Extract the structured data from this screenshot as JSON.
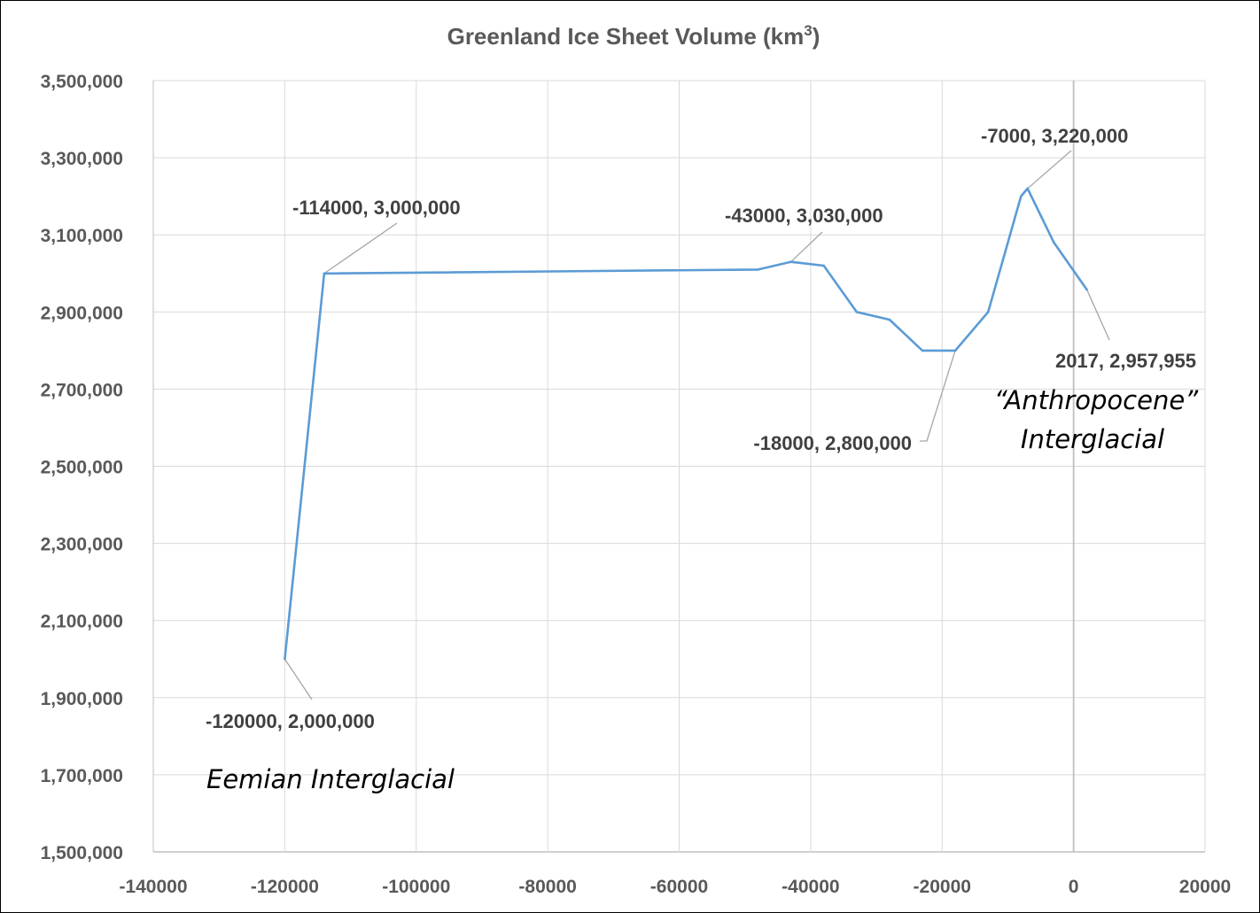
{
  "chart_data": {
    "type": "line",
    "title": "Greenland Ice Sheet Volume (km",
    "title_superscript": "3",
    "title_suffix": ")",
    "xlabel": "",
    "ylabel": "",
    "xlim": [
      -140000,
      20000
    ],
    "ylim": [
      1500000,
      3500000
    ],
    "x_ticks": [
      -140000,
      -120000,
      -100000,
      -80000,
      -60000,
      -40000,
      -20000,
      0,
      20000
    ],
    "x_tick_labels": [
      "-140000",
      "-120000",
      "-100000",
      "-80000",
      "-60000",
      "-40000",
      "-20000",
      "0",
      "20000"
    ],
    "y_ticks": [
      1500000,
      1700000,
      1900000,
      2100000,
      2300000,
      2500000,
      2700000,
      2900000,
      3100000,
      3300000,
      3500000
    ],
    "y_tick_labels": [
      "1,500,000",
      "1,700,000",
      "1,900,000",
      "2,100,000",
      "2,300,000",
      "2,500,000",
      "2,700,000",
      "2,900,000",
      "3,100,000",
      "3,300,000",
      "3,500,000"
    ],
    "grid": true,
    "legend": "none",
    "series": [
      {
        "color": "#5B9BD5",
        "x": [
          -120000,
          -114000,
          -48000,
          -43000,
          -38000,
          -33000,
          -28000,
          -23000,
          -18000,
          -13000,
          -8000,
          -7000,
          -3000,
          2017
        ],
        "y": [
          2000000,
          3000000,
          3010000,
          3030000,
          3020000,
          2900000,
          2880000,
          2800000,
          2800000,
          2900000,
          3200000,
          3220000,
          3080000,
          2957955
        ]
      }
    ],
    "annotations": [
      {
        "label": "-120000,  2,000,000",
        "x": -120000,
        "y": 2000000,
        "anchor": "start"
      },
      {
        "label": "-114000,  3,000,000",
        "x": -114000,
        "y": 3000000,
        "anchor": "start"
      },
      {
        "label": "-43000,  3,030,000",
        "x": -43000,
        "y": 3030000,
        "anchor": "start"
      },
      {
        "label": "-18000,  2,800,000",
        "x": -18000,
        "y": 2800000,
        "anchor": "end"
      },
      {
        "label": "-7000,  3,220,000",
        "x": -7000,
        "y": 3220000,
        "anchor": "start"
      },
      {
        "label": "2017,  2,957,955",
        "x": 2017,
        "y": 2957955,
        "anchor": "end"
      }
    ],
    "notes": [
      "Eemian Interglacial",
      "“Anthropocene”",
      "Interglacial"
    ]
  },
  "colors": {
    "line": "#5B9BD5",
    "grid": "#D9D9D9",
    "axis": "#BFBFBF",
    "leader": "#A6A6A6",
    "text": "#595959"
  }
}
